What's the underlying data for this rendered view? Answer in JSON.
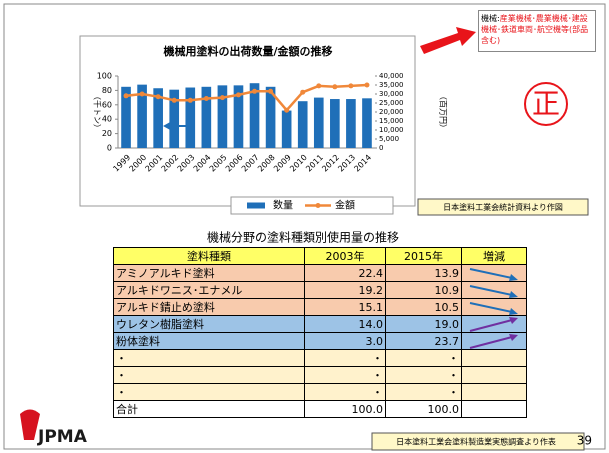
{
  "callout": {
    "term": "機械:",
    "text": "産業機械･農業機械･建設機械･鉄道車両･航空機等(部品含む)"
  },
  "stamp": "正",
  "chart_data": {
    "type": "combo",
    "title": "機械用塗料の出荷数量/金額の推移",
    "y_label": "（千トン）",
    "y2_label": "（百万円）",
    "categories": [
      "1999",
      "2000",
      "2001",
      "2002",
      "2003",
      "2004",
      "2005",
      "2006",
      "2007",
      "2008",
      "2009",
      "2010",
      "2011",
      "2012",
      "2013",
      "2014"
    ],
    "series": [
      {
        "name": "数量",
        "type": "bar",
        "color": "#1f6fb8",
        "values": [
          85,
          88,
          83,
          81,
          84,
          85,
          87,
          87,
          90,
          85,
          52,
          65,
          70,
          68,
          68,
          69
        ]
      },
      {
        "name": "金額",
        "type": "line",
        "axis": "y2",
        "color": "#f0883a",
        "values": [
          29000,
          30000,
          28500,
          26500,
          26500,
          27500,
          28000,
          29500,
          31500,
          31500,
          21000,
          31000,
          34500,
          34000,
          34500,
          35000
        ]
      }
    ],
    "ylim": [
      0,
      100
    ],
    "yticks": [
      0,
      20,
      40,
      60,
      80,
      100
    ],
    "y2lim": [
      0,
      40000
    ],
    "y2ticks": [
      0,
      {
        "value": 5000,
        "label": "5,000"
      },
      {
        "value": 10000,
        "label": "10,000"
      },
      {
        "value": 15000,
        "label": "15,000"
      },
      {
        "value": 20000,
        "label": "20,000"
      },
      {
        "value": 25000,
        "label": "25,000"
      },
      {
        "value": 30000,
        "label": "30,000"
      },
      {
        "value": 35000,
        "label": "35,000"
      },
      {
        "value": 40000,
        "label": "40,000"
      }
    ],
    "source": "日本塗料工業会統計資料より作図"
  },
  "table": {
    "title": "機械分野の塗料種類別使用量の推移",
    "header": [
      "塗料種類",
      "2003年",
      "2015年",
      "増減"
    ],
    "rows": [
      [
        "アミノアルキド塗料",
        "22.4",
        "13.9"
      ],
      [
        "アルキドワニス･エナメル",
        "19.2",
        "10.9"
      ],
      [
        "アルキド錆止め塗料",
        "15.1",
        "10.5"
      ],
      [
        "ウレタン樹脂塗料",
        "14.0",
        "19.0"
      ],
      [
        "粉体塗料",
        "3.0",
        "23.7"
      ],
      [
        "・",
        "・",
        "・"
      ],
      [
        "・",
        "・",
        "・"
      ],
      [
        "・",
        "・",
        "・"
      ],
      [
        "合計",
        "100.0",
        "100.0"
      ]
    ]
  },
  "footer": {
    "logo": "JPMA",
    "source": "日本塗料工業会塗料製造業実態調査より作表",
    "page": "39"
  }
}
